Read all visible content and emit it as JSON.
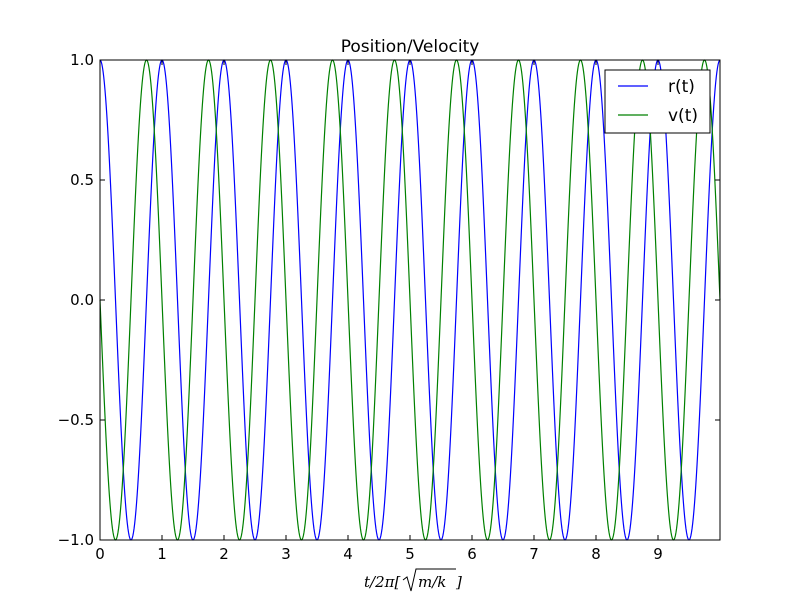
{
  "chart_data": {
    "type": "line",
    "title": "Position/Velocity",
    "xlabel": "t/2π[√m/k]",
    "ylabel": "",
    "xlim": [
      0,
      10
    ],
    "ylim": [
      -1.0,
      1.0
    ],
    "x_ticks": [
      0,
      1,
      2,
      3,
      4,
      5,
      6,
      7,
      8,
      9
    ],
    "x_tick_labels": [
      "0",
      "1",
      "2",
      "3",
      "4",
      "5",
      "6",
      "7",
      "8",
      "9"
    ],
    "y_ticks": [
      1.0,
      0.5,
      0.0,
      -0.5,
      -1.0
    ],
    "y_tick_labels": [
      "1.0",
      "0.5",
      "0.0",
      "−0.5",
      "−1.0"
    ],
    "grid": false,
    "legend_position": "top-right",
    "series": [
      {
        "name": "r(t)",
        "color": "#0000ff",
        "function": "cos",
        "x_range": [
          0,
          10
        ],
        "period": 1.0
      },
      {
        "name": "v(t)",
        "color": "#008000",
        "function": "-sin",
        "x_range": [
          0,
          10
        ],
        "period": 1.0
      }
    ]
  }
}
